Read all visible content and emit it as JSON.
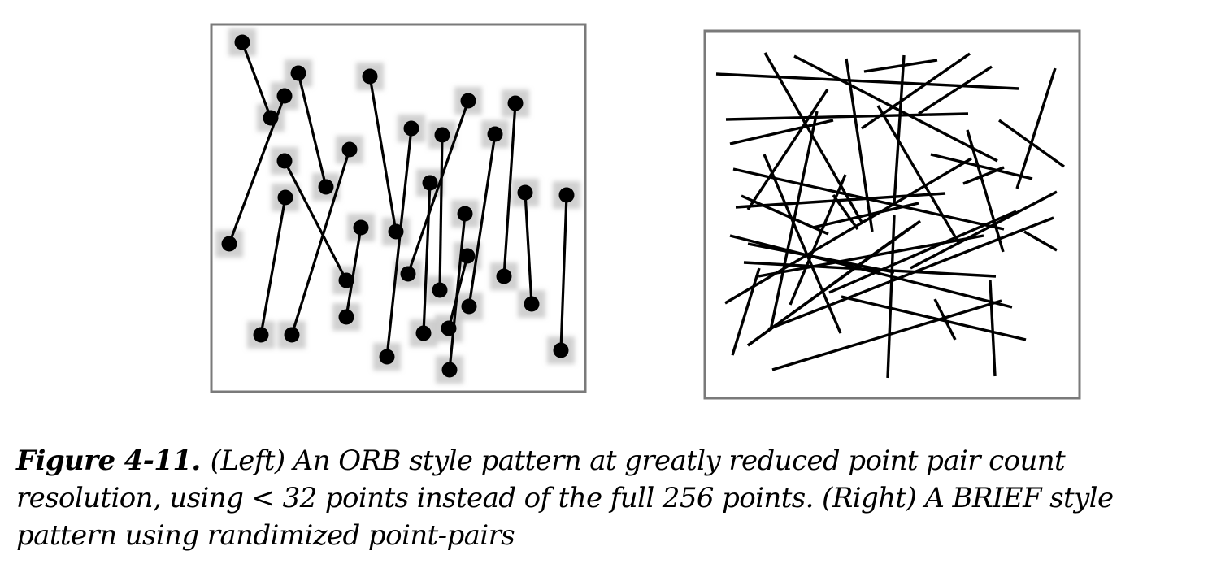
{
  "caption": {
    "label": "Figure 4-11.",
    "text": "(Left) An ORB style pattern at greatly reduced point pair count resolution, using < 32 points instead of the full 256 points. (Right) A BRIEF style pattern using randimized point-pairs"
  },
  "colors": {
    "line": "#000000",
    "frame": "#7a7a7a",
    "shadow": "#c8c8c8"
  }
}
